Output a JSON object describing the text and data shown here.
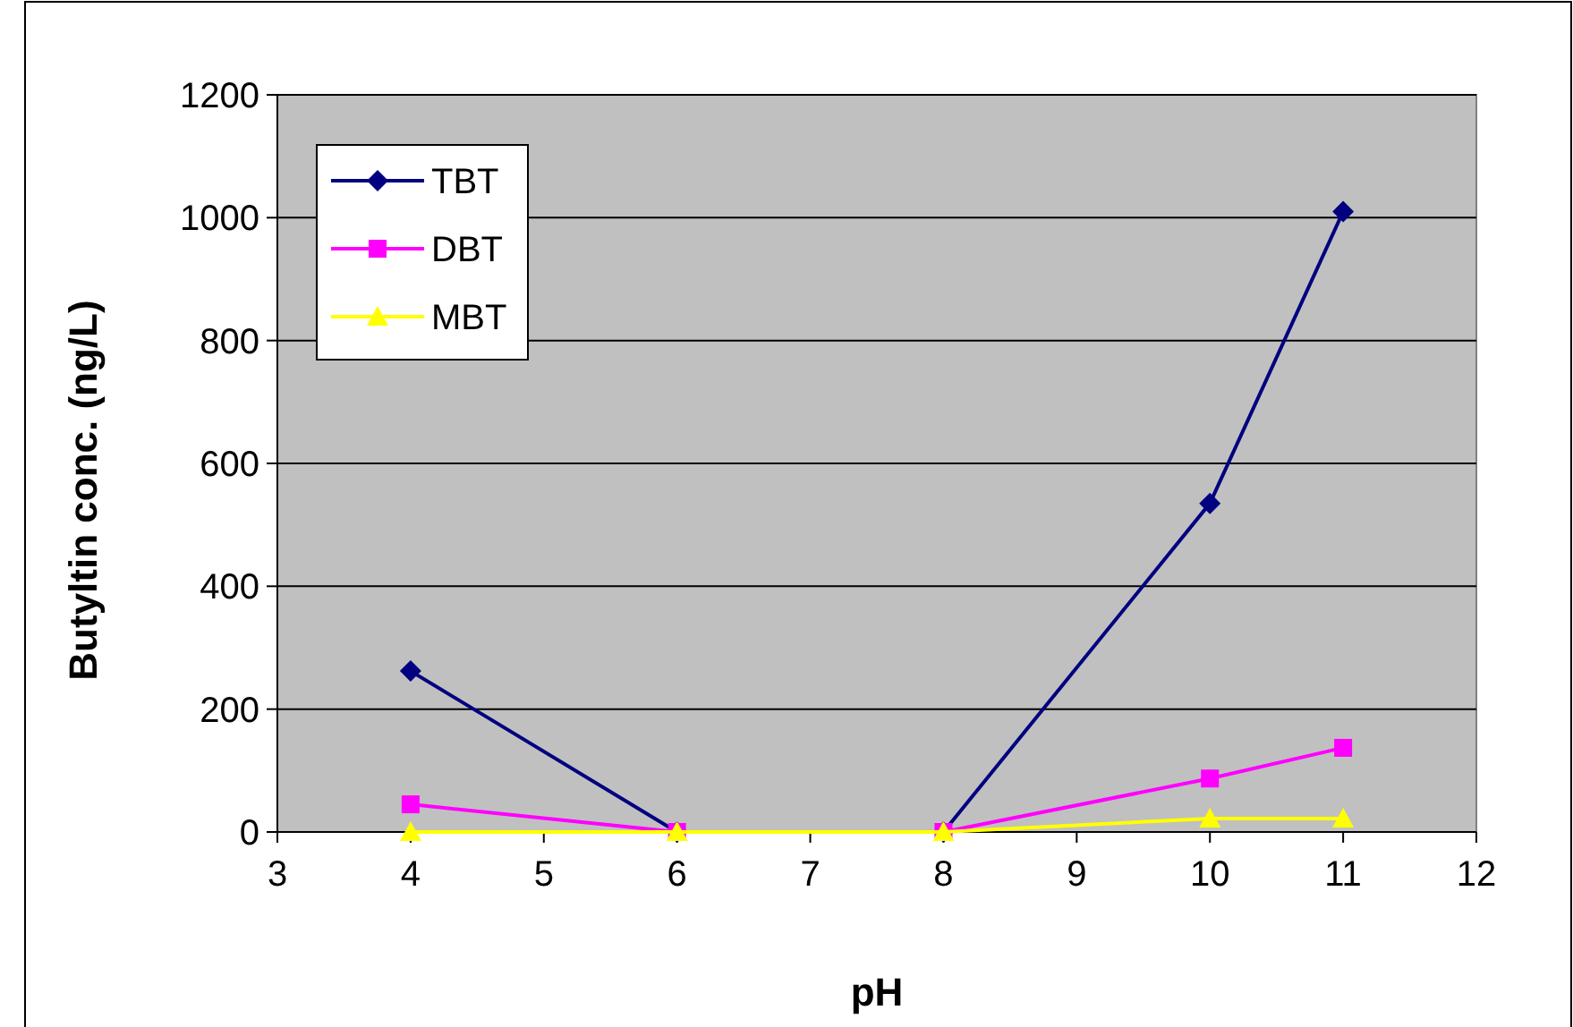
{
  "chart_data": {
    "type": "line",
    "xlabel": "pH",
    "ylabel": "Butyltin conc. (ng/L)",
    "x": [
      4,
      6,
      8,
      10,
      11
    ],
    "xlim": [
      3,
      12
    ],
    "xticks": [
      3,
      4,
      5,
      6,
      7,
      8,
      9,
      10,
      11,
      12
    ],
    "ylim": [
      0,
      1200
    ],
    "yticks": [
      0,
      200,
      400,
      600,
      800,
      1000,
      1200
    ],
    "grid": "y",
    "legend": "top left",
    "series": [
      {
        "name": "TBT",
        "color": "#000080",
        "marker": "diamond",
        "values": [
          262,
          0,
          0,
          535,
          1010
        ]
      },
      {
        "name": "DBT",
        "color": "#ff00ff",
        "marker": "square",
        "values": [
          45,
          0,
          0,
          87,
          137
        ]
      },
      {
        "name": "MBT",
        "color": "#ffff00",
        "marker": "triangle",
        "values": [
          0,
          0,
          0,
          22,
          22
        ]
      }
    ]
  }
}
